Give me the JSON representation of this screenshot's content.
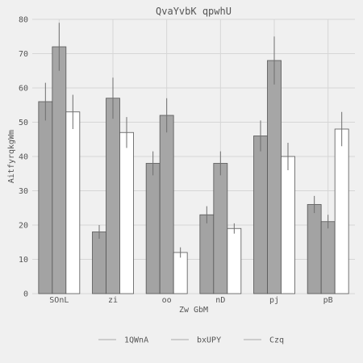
{
  "chart_data": {
    "type": "bar",
    "title": "QvaYvbK qpwhU",
    "xlabel": "Zw GbM",
    "ylabel": "AitfyrqkgWm",
    "categories": [
      "SOnL",
      "zi",
      "oo",
      "nD",
      "pj",
      "pB"
    ],
    "ylim": [
      0,
      80
    ],
    "yticks": [
      0,
      10,
      20,
      30,
      40,
      50,
      60,
      70,
      80
    ],
    "grid": true,
    "legend_position": "bottom",
    "series": [
      {
        "name": "1QWnA",
        "color": "#a3a3a3",
        "values": [
          56,
          18,
          38,
          23,
          46,
          26
        ],
        "errors": [
          5.5,
          2,
          3.5,
          2.5,
          4.5,
          2.5
        ]
      },
      {
        "name": "bxUPY",
        "color": "#a6a6a6",
        "values": [
          72,
          57,
          52,
          38,
          68,
          21
        ],
        "errors": [
          7,
          6,
          5,
          3.5,
          7,
          2
        ]
      },
      {
        "name": "Czq",
        "color": "#ffffff",
        "values": [
          53,
          47,
          12,
          19,
          40,
          48
        ],
        "errors": [
          5,
          4.5,
          1.5,
          1.5,
          4,
          5
        ]
      }
    ]
  }
}
